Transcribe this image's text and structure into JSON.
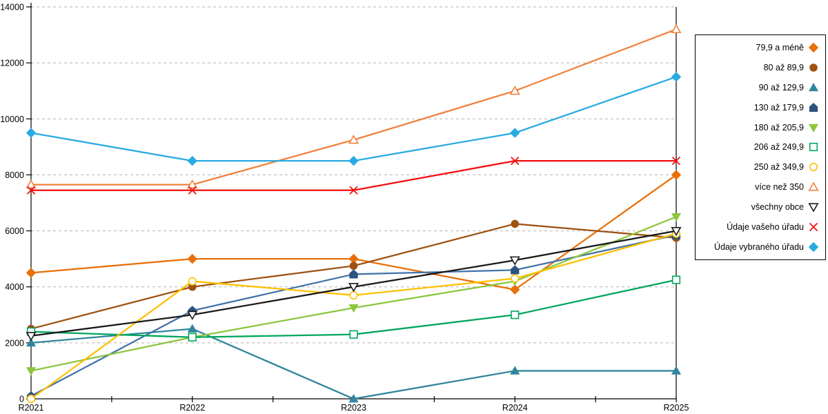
{
  "chart_data": {
    "type": "line",
    "title": "",
    "xlabel": "",
    "ylabel": "",
    "categories": [
      "R2021",
      "R2022",
      "R2023",
      "R2024",
      "R2025"
    ],
    "ylim": [
      0,
      14000
    ],
    "ytick_step": 2000,
    "grid": "horizontal-dashed",
    "legend_position": "right-box",
    "series": [
      {
        "name": "79,9 a méně",
        "marker": "diamond",
        "fill": "solid",
        "color": "#E8700A",
        "values": [
          4500,
          5000,
          5000,
          3900,
          8000
        ]
      },
      {
        "name": "80 až 89,9",
        "marker": "circle",
        "fill": "solid",
        "color": "#9E5212",
        "values": [
          2500,
          4000,
          4750,
          6250,
          5750
        ]
      },
      {
        "name": "90 až 129,9",
        "marker": "triangle-up",
        "fill": "solid",
        "color": "#31859C",
        "values": [
          2000,
          2500,
          0,
          1000,
          1000
        ]
      },
      {
        "name": "130 až 179,9",
        "marker": "pentagon",
        "fill": "solid",
        "color": "#2A5380",
        "line_color": "#4273A8",
        "values": [
          100,
          3150,
          4450,
          4600,
          5850
        ]
      },
      {
        "name": "180 až 205,9",
        "marker": "triangle-down",
        "fill": "solid",
        "color": "#8CC63E",
        "values": [
          1000,
          2200,
          3250,
          4200,
          6500
        ]
      },
      {
        "name": "206 až 249,9",
        "marker": "square",
        "fill": "open",
        "color": "#00A65C",
        "values": [
          2400,
          2200,
          2300,
          3000,
          4250
        ]
      },
      {
        "name": "250 až 349,9",
        "marker": "circle",
        "fill": "open",
        "color": "#FFC000",
        "values": [
          0,
          4200,
          3700,
          4300,
          5900
        ]
      },
      {
        "name": "více než 350",
        "marker": "triangle-up",
        "fill": "open",
        "color": "#F0813C",
        "values": [
          7650,
          7650,
          9250,
          11000,
          13200
        ]
      },
      {
        "name": "všechny obce",
        "marker": "triangle-down",
        "fill": "open",
        "color": "#1A1A1A",
        "values": [
          2250,
          3000,
          4000,
          4950,
          6000
        ]
      },
      {
        "name": "Údaje vašeho úřadu",
        "marker": "x",
        "fill": "open",
        "color": "#F50D0D",
        "values": [
          7450,
          7450,
          7450,
          8500,
          8500
        ]
      },
      {
        "name": "Údaje vybraného úřadu",
        "marker": "diamond",
        "fill": "solid",
        "color": "#29ABE2",
        "values": [
          9500,
          8500,
          8500,
          9500,
          11500
        ]
      }
    ],
    "colors": {
      "gridline": "#B3B3B3",
      "axis": "#000000",
      "legend_border": "#000000",
      "background": "#FFFFFF"
    }
  }
}
